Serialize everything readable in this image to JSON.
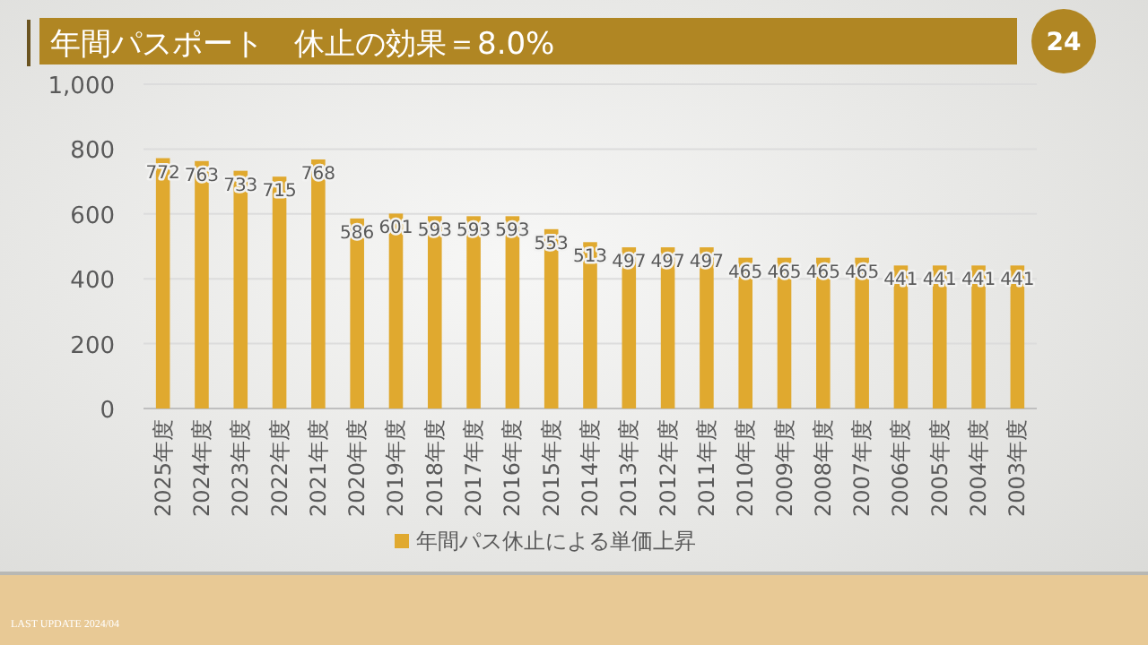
{
  "chart_data": {
    "type": "bar",
    "title": "年間パスポート　休止の効果＝8.0%",
    "categories": [
      "2025年度",
      "2024年度",
      "2023年度",
      "2022年度",
      "2021年度",
      "2020年度",
      "2019年度",
      "2018年度",
      "2017年度",
      "2016年度",
      "2015年度",
      "2014年度",
      "2013年度",
      "2012年度",
      "2011年度",
      "2010年度",
      "2009年度",
      "2008年度",
      "2007年度",
      "2006年度",
      "2005年度",
      "2004年度",
      "2003年度"
    ],
    "series": [
      {
        "name": "年間パス休止による単価上昇",
        "color": "#e0a92f",
        "values": [
          772,
          763,
          733,
          715,
          768,
          586,
          601,
          593,
          593,
          593,
          553,
          513,
          497,
          497,
          497,
          465,
          465,
          465,
          465,
          441,
          441,
          441,
          441
        ]
      }
    ],
    "ylim": [
      0,
      1000
    ],
    "yticks": [
      0,
      200,
      400,
      600,
      800,
      {
        "value": 1000,
        "label": "1,000"
      }
    ],
    "grid": "y",
    "data_labels": true,
    "legend": "bottom",
    "annotations": [
      "24",
      "LAST UPDATE 2024/04"
    ]
  }
}
